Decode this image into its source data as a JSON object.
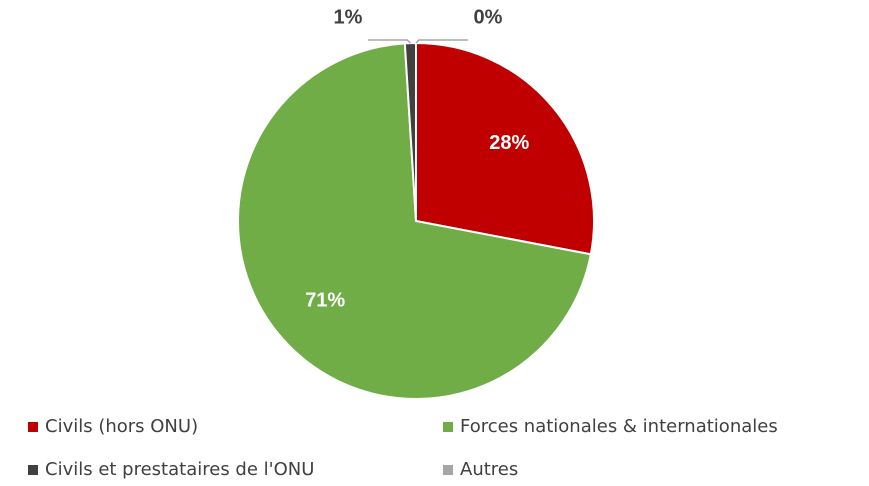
{
  "chart_data": {
    "type": "pie",
    "categories": [
      "Civils (hors ONU)",
      "Forces nationales & internationales",
      "Civils et prestataires de l'ONU",
      "Autres"
    ],
    "values": [
      28,
      71,
      1,
      0
    ],
    "value_labels": [
      "28%",
      "71%",
      "1%",
      "0%"
    ],
    "colors": [
      "#c00000",
      "#70ad47",
      "#404040",
      "#a5a5a5"
    ],
    "legend": "bottom"
  }
}
